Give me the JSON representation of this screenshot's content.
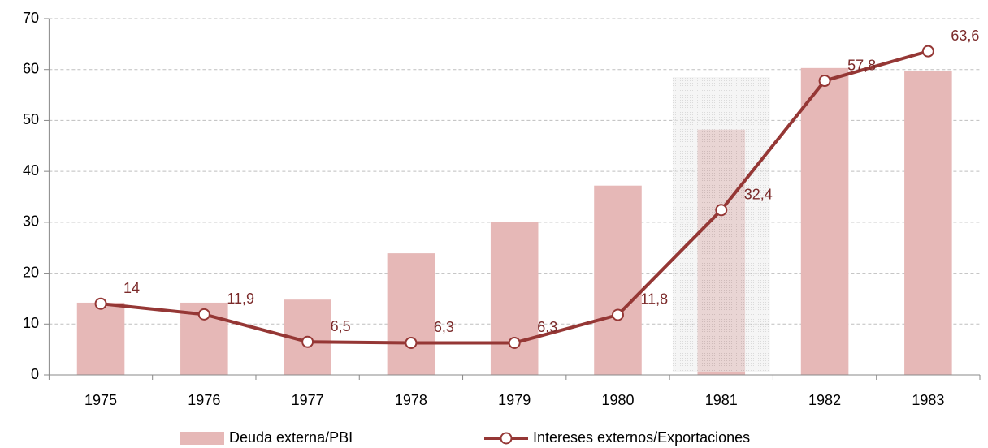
{
  "chart_data": {
    "type": "bar_line",
    "categories": [
      "1975",
      "1976",
      "1977",
      "1978",
      "1979",
      "1980",
      "1981",
      "1982",
      "1983"
    ],
    "series": [
      {
        "name": "Deuda externa/PBI",
        "type": "bar",
        "color": "#e6b8b7",
        "values": [
          14.2,
          14.2,
          14.8,
          23.9,
          30.1,
          37.2,
          48.2,
          60.3,
          59.8
        ]
      },
      {
        "name": "Intereses externos/Exportaciones",
        "type": "line",
        "color": "#953735",
        "values": [
          14,
          11.9,
          6.5,
          6.3,
          6.3,
          11.8,
          32.4,
          57.8,
          63.6
        ],
        "value_labels": [
          "14",
          "11,9",
          "6,5",
          "6,3",
          "6,3",
          "11,8",
          "32,4",
          "57,8",
          "63,6"
        ]
      }
    ],
    "ylim": [
      0,
      70
    ],
    "yticks": [
      0,
      10,
      20,
      30,
      40,
      50,
      60,
      70
    ],
    "grid": true
  }
}
